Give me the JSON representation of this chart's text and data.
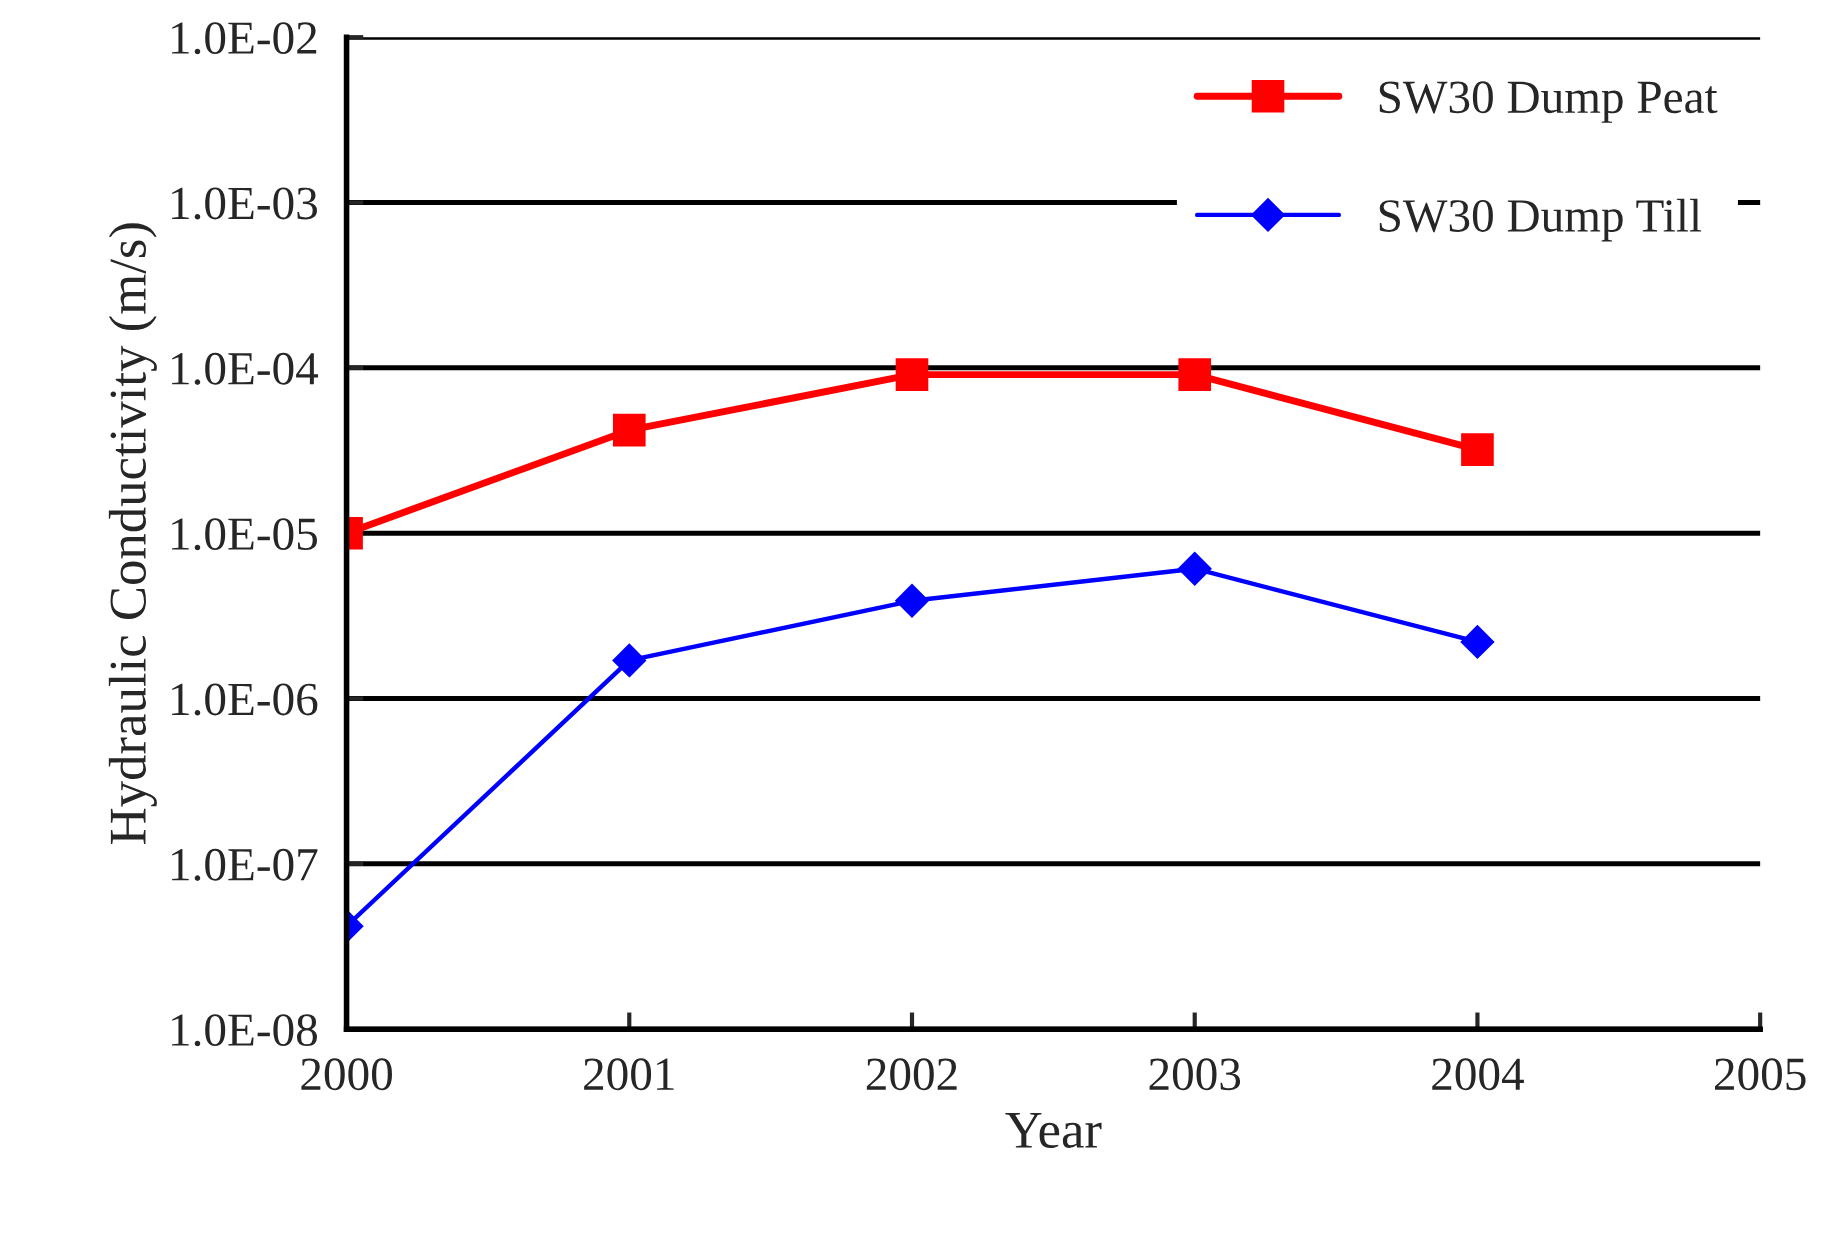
{
  "chart_data": {
    "type": "line",
    "xlabel": "Year",
    "ylabel": "Hydraulic Conductivity (m/s)",
    "x": [
      2000,
      2001,
      2002,
      2003,
      2004
    ],
    "series": [
      {
        "name": "SW30 Dump Peat",
        "color": "#ff0000",
        "marker": "square",
        "values": [
          1e-05,
          4.2e-05,
          9.1e-05,
          9.1e-05,
          3.2e-05
        ]
      },
      {
        "name": "SW30 Dump Till",
        "color": "#0000ff",
        "marker": "diamond",
        "values": [
          4.2e-08,
          1.7e-06,
          3.9e-06,
          6.1e-06,
          2.2e-06
        ]
      }
    ],
    "log": "y",
    "xlim": [
      2000,
      2005
    ],
    "xticks": [
      2000,
      2001,
      2002,
      2003,
      2004,
      2005
    ],
    "ylim": [
      1e-08,
      0.01
    ],
    "yticks": [
      {
        "value": 1e-08,
        "label": "1.0E-08"
      },
      {
        "value": 1e-07,
        "label": "1.0E-07"
      },
      {
        "value": 1e-06,
        "label": "1.0E-06"
      },
      {
        "value": 1e-05,
        "label": "1.0E-05"
      },
      {
        "value": 0.0001,
        "label": "1.0E-04"
      },
      {
        "value": 0.001,
        "label": "1.0E-03"
      },
      {
        "value": 0.01,
        "label": "1.0E-02"
      }
    ],
    "grid": "y",
    "legend": "top right"
  }
}
